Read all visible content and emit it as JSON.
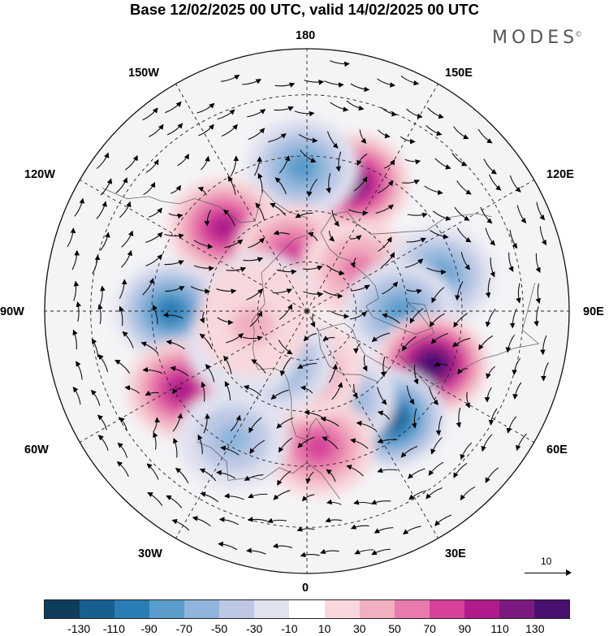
{
  "header": {
    "title": "Base 12/02/2025 00 UTC, valid 14/02/2025 00 UTC",
    "brand": "MODES",
    "brand_mark": "©"
  },
  "longitude_labels": {
    "lon_180": "180",
    "lon_150w": "150W",
    "lon_150e": "150E",
    "lon_120w": "120W",
    "lon_120e": "120E",
    "lon_90w": "90W",
    "lon_90e": "90E",
    "lon_60w": "60W",
    "lon_60e": "60E",
    "lon_30w": "30W",
    "lon_30e": "30E",
    "lon_0": "0"
  },
  "reference_vector": {
    "value": "10"
  },
  "colorbar": {
    "labels": [
      "-130",
      "-110",
      "-90",
      "-70",
      "-50",
      "-30",
      "-10",
      "10",
      "30",
      "50",
      "70",
      "90",
      "110",
      "130"
    ],
    "colors": [
      "#0e3d5c",
      "#175f8f",
      "#2b7db5",
      "#5a9ccb",
      "#8fb5dc",
      "#bcc8e4",
      "#e1e2f0",
      "#ffffff",
      "#f8d8dc",
      "#f1b0c0",
      "#e97aac",
      "#d6429a",
      "#b01a8a",
      "#7a1a80",
      "#4a1070"
    ]
  },
  "anomaly_centers": [
    {
      "sign": "pos",
      "level": 5,
      "lon": -160,
      "lat": 50
    },
    {
      "sign": "neg",
      "level": 3,
      "lon": 178,
      "lat": 48
    },
    {
      "sign": "pos",
      "level": 4,
      "lon": 135,
      "lat": 55
    },
    {
      "sign": "pos",
      "level": 3,
      "lon": 165,
      "lat": 72
    },
    {
      "sign": "pos",
      "level": 2,
      "lon": -130,
      "lat": 70
    },
    {
      "sign": "neg",
      "level": 3,
      "lon": -105,
      "lat": 50
    },
    {
      "sign": "neg",
      "level": 3,
      "lon": -90,
      "lat": 62
    },
    {
      "sign": "neg",
      "level": 4,
      "lon": 90,
      "lat": 50
    },
    {
      "sign": "neg",
      "level": 1,
      "lon": 100,
      "lat": 75
    },
    {
      "sign": "pos",
      "level": 2,
      "lon": 90,
      "lat": 75
    },
    {
      "sign": "pos",
      "level": 6,
      "lon": -67,
      "lat": 50
    },
    {
      "sign": "pos",
      "level": 4,
      "lon": 58,
      "lat": 47
    },
    {
      "sign": "neg",
      "level": 5,
      "lon": -38,
      "lat": 50
    },
    {
      "sign": "neg",
      "level": 3,
      "lon": -20,
      "lat": 62
    },
    {
      "sign": "pos",
      "level": 3,
      "lon": -5,
      "lat": 50
    },
    {
      "sign": "pos",
      "level": 2,
      "lon": 0,
      "lat": 72
    },
    {
      "sign": "neg",
      "level": 3,
      "lon": 30,
      "lat": 72
    },
    {
      "sign": "neg",
      "level": 2,
      "lon": 30,
      "lat": 47
    },
    {
      "sign": "neg",
      "level": 1,
      "lon": 60,
      "lat": 68
    },
    {
      "sign": "pos",
      "level": 1,
      "lon": 75,
      "lat": 73
    }
  ]
}
